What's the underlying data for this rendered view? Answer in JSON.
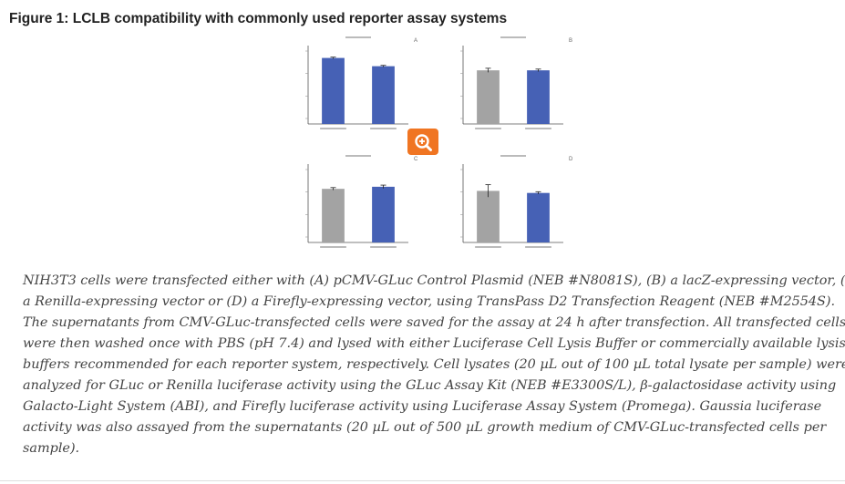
{
  "figure": {
    "title": "Figure 1: LCLB compatibility with commonly used reporter assay systems",
    "zoom_icon": "zoom-in-icon",
    "colors": {
      "accent": "#f07522",
      "bar_blue": "#4661b5",
      "bar_gray": "#a3a3a3"
    }
  },
  "chart_data": [
    {
      "type": "bar",
      "panel": "A",
      "categories": [
        "",
        ""
      ],
      "values": [
        1.6,
        1.4
      ],
      "colors": [
        "#4661b5",
        "#4661b5"
      ],
      "error": [
        0.02,
        0.02
      ],
      "ylim": [
        0,
        1.9
      ]
    },
    {
      "type": "bar",
      "panel": "B",
      "categories": [
        "",
        ""
      ],
      "values": [
        1.3,
        1.3
      ],
      "colors": [
        "#a3a3a3",
        "#4661b5"
      ],
      "error": [
        0.05,
        0.03
      ],
      "ylim": [
        0,
        1.9
      ]
    },
    {
      "type": "bar",
      "panel": "C",
      "categories": [
        "",
        ""
      ],
      "values": [
        1.3,
        1.35
      ],
      "colors": [
        "#a3a3a3",
        "#4661b5"
      ],
      "error": [
        0.03,
        0.04
      ],
      "ylim": [
        0,
        1.9
      ]
    },
    {
      "type": "bar",
      "panel": "D",
      "categories": [
        "",
        ""
      ],
      "values": [
        1.25,
        1.2
      ],
      "colors": [
        "#a3a3a3",
        "#4661b5"
      ],
      "error": [
        0.15,
        0.03
      ],
      "ylim": [
        0,
        1.9
      ]
    }
  ],
  "caption": {
    "lines": [
      "NIH3T3 cells were transfected either with (A) pCMV-GLuc Control Plasmid (NEB #N8081S), (B) a lacZ-expressing vector, (C)",
      "a Renilla-expressing vector or (D) a Firefly-expressing vector, using TransPass D2 Transfection Reagent (NEB #M2554S).",
      "The supernatants from CMV-GLuc-transfected cells were saved for the assay at 24 h after transfection. All transfected cells",
      "were then washed once with PBS (pH 7.4) and lysed with either Luciferase Cell Lysis Buffer or commercially available lysis",
      "buffers recommended for each reporter system, respectively. Cell lysates (20 µL out of 100 µL total lysate per sample) were",
      "analyzed for GLuc or Renilla luciferase activity using the GLuc Assay Kit (NEB #E3300S/L), β-galactosidase activity using",
      "Galacto-Light System (ABI), and Firefly luciferase activity using Luciferase Assay System (Promega). Gaussia luciferase",
      "activity was also assayed from the supernatants (20 µL out of 500 µL growth medium of CMV-GLuc-transfected cells per",
      "sample)."
    ]
  }
}
